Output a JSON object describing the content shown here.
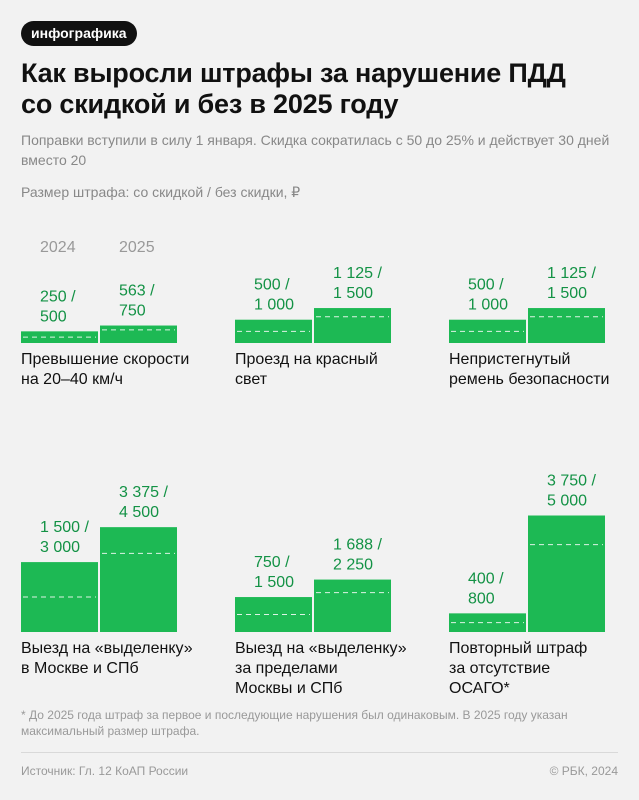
{
  "tag": "инфографика",
  "title_line1": "Как выросли штрафы за нарушение ПДД",
  "title_line2": "со скидкой и без в 2025 году",
  "subtitle": "Поправки вступили в силу 1 января. Скидка сократилась с 50 до 25% и действует 30 дней вместо 20",
  "note": "Размер штрафа: со скидкой / без скидки, ₽",
  "footnote": "* До 2025 года штраф за первое и последующие нарушения был одинаковым. В 2025 году указан максимальный размер штрафа.",
  "source": "Источник: Гл. 12 КоАП России",
  "copyright": "© РБК, 2024",
  "colors": {
    "bar": "#1db954",
    "value_text": "#139245",
    "year_text": "#999999",
    "dash": "#ffffff"
  },
  "chart_data": [
    {
      "type": "bar",
      "title": [
        "Превышение скорости",
        "на 20–40 км/ч"
      ],
      "categories": [
        "2024",
        "2025"
      ],
      "show_years": true,
      "with_discount": [
        250,
        563
      ],
      "without_discount": [
        500,
        750
      ],
      "labels": [
        [
          "250 /",
          "500"
        ],
        [
          "563 /",
          "750"
        ]
      ]
    },
    {
      "type": "bar",
      "title": [
        "Проезд на красный",
        "свет"
      ],
      "categories": [
        "2024",
        "2025"
      ],
      "show_years": false,
      "with_discount": [
        500,
        1125
      ],
      "without_discount": [
        1000,
        1500
      ],
      "labels": [
        [
          "500 /",
          "1 000"
        ],
        [
          "1 125 /",
          "1 500"
        ]
      ]
    },
    {
      "type": "bar",
      "title": [
        "Непристегнутый",
        "ремень безопасности"
      ],
      "categories": [
        "2024",
        "2025"
      ],
      "show_years": false,
      "with_discount": [
        500,
        1125
      ],
      "without_discount": [
        1000,
        1500
      ],
      "labels": [
        [
          "500 /",
          "1 000"
        ],
        [
          "1 125 /",
          "1 500"
        ]
      ]
    },
    {
      "type": "bar",
      "title": [
        "Выезд на «выделенку»",
        "в Москве и СПб"
      ],
      "categories": [
        "2024",
        "2025"
      ],
      "show_years": false,
      "with_discount": [
        1500,
        3375
      ],
      "without_discount": [
        3000,
        4500
      ],
      "labels": [
        [
          "1 500 /",
          "3 000"
        ],
        [
          "3 375 /",
          "4 500"
        ]
      ]
    },
    {
      "type": "bar",
      "title": [
        "Выезд на «выделенку»",
        "за пределами",
        "Москвы и СПб"
      ],
      "categories": [
        "2024",
        "2025"
      ],
      "show_years": false,
      "with_discount": [
        750,
        1688
      ],
      "without_discount": [
        1500,
        2250
      ],
      "labels": [
        [
          "750 /",
          "1 500"
        ],
        [
          "1 688 /",
          "2 250"
        ]
      ]
    },
    {
      "type": "bar",
      "title": [
        "Повторный штраф",
        "за отсутствие",
        "ОСАГО*"
      ],
      "categories": [
        "2024",
        "2025"
      ],
      "show_years": false,
      "with_discount": [
        400,
        3750
      ],
      "without_discount": [
        800,
        5000
      ],
      "labels": [
        [
          "400 /",
          "800"
        ],
        [
          "3 750 /",
          "5 000"
        ]
      ]
    }
  ]
}
